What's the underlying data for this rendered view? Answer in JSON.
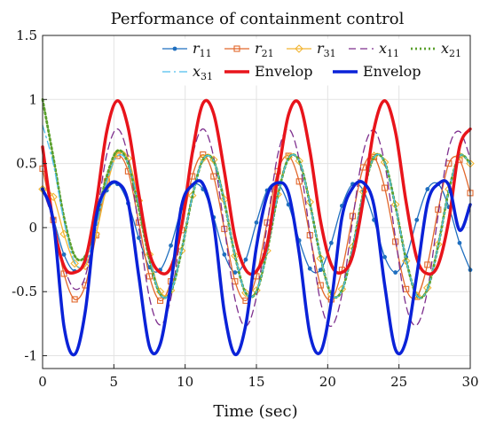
{
  "chart_data": {
    "type": "line",
    "title": "Performance of containment control",
    "xlabel": "Time (sec)",
    "ylabel": "",
    "xlim": [
      0,
      30
    ],
    "ylim": [
      -1.1,
      1.5
    ],
    "xticks": [
      0,
      5,
      10,
      15,
      20,
      25,
      30
    ],
    "xtick_labels": [
      "0",
      "5",
      "10",
      "15",
      "20",
      "25",
      "30"
    ],
    "yticks": [
      -1,
      -0.5,
      0,
      0.5,
      1,
      1.5
    ],
    "ytick_labels": [
      "-1",
      "-0.5",
      "0",
      "0.5",
      "1",
      "1.5"
    ],
    "grid": true,
    "legend_position": "top-right",
    "legend_columns": 4,
    "series": [
      {
        "name": "r11",
        "legend_base": "r",
        "legend_sub": "11",
        "color": "#1f6fbf",
        "style": "solid",
        "marker": "dot",
        "x": [
          0,
          0.75,
          1.5,
          2.25,
          3,
          3.75,
          4.5,
          5.25,
          6,
          6.75,
          7.5,
          8.25,
          9,
          9.75,
          10.5,
          11.25,
          12,
          12.75,
          13.5,
          14.25,
          15,
          15.75,
          16.5,
          17.25,
          18,
          18.75,
          19.5,
          20.25,
          21,
          21.75,
          22.5,
          23.25,
          24,
          24.75,
          25.5,
          26.25,
          27,
          27.75,
          28.5,
          29.25,
          30
        ],
        "y": [
          0.3,
          0.07,
          -0.21,
          -0.34,
          -0.25,
          0.03,
          0.29,
          0.34,
          0.19,
          -0.08,
          -0.31,
          -0.33,
          -0.14,
          0.15,
          0.33,
          0.3,
          0.08,
          -0.21,
          -0.35,
          -0.25,
          0.04,
          0.29,
          0.34,
          0.18,
          -0.1,
          -0.32,
          -0.33,
          -0.12,
          0.17,
          0.34,
          0.29,
          0.06,
          -0.23,
          -0.35,
          -0.23,
          0.06,
          0.3,
          0.34,
          0.16,
          -0.12,
          -0.33
        ]
      },
      {
        "name": "r21",
        "legend_base": "r",
        "legend_sub": "21",
        "color": "#e2672b",
        "style": "solid",
        "marker": "square",
        "x": [
          0,
          0.75,
          1.5,
          2.25,
          3,
          3.75,
          4.5,
          5.25,
          6,
          6.75,
          7.5,
          8.25,
          9,
          9.75,
          10.5,
          11.25,
          12,
          12.75,
          13.5,
          14.25,
          15,
          15.75,
          16.5,
          17.25,
          18,
          18.75,
          19.5,
          20.25,
          21,
          21.75,
          22.5,
          23.25,
          24,
          24.75,
          25.5,
          26.25,
          27,
          27.75,
          28.5,
          29.25,
          30
        ],
        "y": [
          0.46,
          0.06,
          -0.36,
          -0.56,
          -0.45,
          -0.06,
          0.36,
          0.56,
          0.44,
          0.04,
          -0.38,
          -0.57,
          -0.42,
          -0.02,
          0.4,
          0.57,
          0.4,
          -0.01,
          -0.42,
          -0.57,
          -0.38,
          0.04,
          0.44,
          0.56,
          0.36,
          -0.06,
          -0.45,
          -0.56,
          -0.33,
          0.09,
          0.47,
          0.55,
          0.31,
          -0.11,
          -0.48,
          -0.54,
          -0.29,
          0.14,
          0.5,
          0.53,
          0.27
        ]
      },
      {
        "name": "r31",
        "legend_base": "r",
        "legend_sub": "31",
        "color": "#f2b533",
        "style": "solid",
        "marker": "diamond",
        "x": [
          0,
          0.75,
          1.5,
          2.25,
          3,
          3.75,
          4.5,
          5.25,
          6,
          6.75,
          7.5,
          8.25,
          9,
          9.75,
          10.5,
          11.25,
          12,
          12.75,
          13.5,
          14.25,
          15,
          15.75,
          16.5,
          17.25,
          18,
          18.75,
          19.5,
          20.25,
          21,
          21.75,
          22.5,
          23.25,
          24,
          24.75,
          25.5,
          26.25,
          27,
          27.75,
          28.5,
          29.25,
          30
        ],
        "y": [
          0.3,
          0.24,
          -0.05,
          -0.28,
          -0.3,
          -0.05,
          0.32,
          0.58,
          0.54,
          0.21,
          -0.21,
          -0.5,
          -0.49,
          -0.18,
          0.25,
          0.54,
          0.53,
          0.22,
          -0.22,
          -0.51,
          -0.49,
          -0.18,
          0.26,
          0.55,
          0.52,
          0.2,
          -0.24,
          -0.52,
          -0.48,
          -0.15,
          0.28,
          0.56,
          0.51,
          0.18,
          -0.26,
          -0.53,
          -0.47,
          -0.13,
          0.3,
          0.56,
          0.5
        ]
      },
      {
        "name": "x11",
        "legend_base": "x",
        "legend_sub": "11",
        "color": "#7e2f8e",
        "style": "dashed",
        "marker": "none",
        "x": [
          0,
          0.75,
          1.5,
          2.25,
          3,
          3.75,
          4.5,
          5.25,
          6,
          6.75,
          7.5,
          8.25,
          9,
          9.75,
          10.5,
          11.25,
          12,
          12.75,
          13.5,
          14.25,
          15,
          15.75,
          16.5,
          17.25,
          18,
          18.75,
          19.5,
          20.25,
          21,
          21.75,
          22.5,
          23.25,
          24,
          24.75,
          25.5,
          26.25,
          27,
          27.75,
          28.5,
          29.25,
          30
        ],
        "y": [
          0.3,
          0.05,
          -0.3,
          -0.48,
          -0.38,
          0.06,
          0.57,
          0.77,
          0.55,
          0.0,
          -0.55,
          -0.76,
          -0.55,
          0.0,
          0.55,
          0.77,
          0.55,
          0.0,
          -0.56,
          -0.77,
          -0.54,
          0.02,
          0.57,
          0.77,
          0.53,
          -0.04,
          -0.58,
          -0.77,
          -0.52,
          0.06,
          0.59,
          0.76,
          0.5,
          -0.08,
          -0.61,
          -0.76,
          -0.49,
          0.1,
          0.62,
          0.75,
          0.54
        ]
      },
      {
        "name": "x21",
        "legend_base": "x",
        "legend_sub": "21",
        "color": "#5aa02c",
        "style": "dotted",
        "marker": "none",
        "x": [
          0,
          0.75,
          1.5,
          2.25,
          3,
          3.75,
          4.5,
          5.25,
          6,
          6.75,
          7.5,
          8.25,
          9,
          9.75,
          10.5,
          11.25,
          12,
          12.75,
          13.5,
          14.25,
          15,
          15.75,
          16.5,
          17.25,
          18,
          18.75,
          19.5,
          20.25,
          21,
          21.75,
          22.5,
          23.25,
          24,
          24.75,
          25.5,
          26.25,
          27,
          27.75,
          28.5,
          29.25,
          30
        ],
        "y": [
          1.0,
          0.55,
          0.08,
          -0.22,
          -0.22,
          0.05,
          0.4,
          0.6,
          0.5,
          0.15,
          -0.25,
          -0.52,
          -0.5,
          -0.18,
          0.24,
          0.53,
          0.52,
          0.2,
          -0.22,
          -0.51,
          -0.5,
          -0.18,
          0.25,
          0.54,
          0.52,
          0.19,
          -0.23,
          -0.52,
          -0.49,
          -0.16,
          0.27,
          0.55,
          0.51,
          0.17,
          -0.25,
          -0.53,
          -0.48,
          -0.14,
          0.29,
          0.56,
          0.5
        ]
      },
      {
        "name": "x31",
        "legend_base": "x",
        "legend_sub": "31",
        "color": "#4dbeee",
        "style": "dashdot",
        "marker": "none",
        "x": [
          0,
          0.75,
          1.5,
          2.25,
          3,
          3.75,
          4.5,
          5.25,
          6,
          6.75,
          7.5,
          8.25,
          9,
          9.75,
          10.5,
          11.25,
          12,
          12.75,
          13.5,
          14.25,
          15,
          15.75,
          16.5,
          17.25,
          18,
          18.75,
          19.5,
          20.25,
          21,
          21.75,
          22.5,
          23.25,
          24,
          24.75,
          25.5,
          26.25,
          27,
          27.75,
          28.5,
          29.25,
          30
        ],
        "y": [
          0.8,
          0.5,
          0.05,
          -0.27,
          -0.28,
          0.0,
          0.36,
          0.56,
          0.5,
          0.18,
          -0.23,
          -0.52,
          -0.5,
          -0.18,
          0.24,
          0.53,
          0.52,
          0.2,
          -0.22,
          -0.51,
          -0.5,
          -0.18,
          0.25,
          0.54,
          0.52,
          0.19,
          -0.23,
          -0.52,
          -0.49,
          -0.16,
          0.27,
          0.55,
          0.51,
          0.17,
          -0.25,
          -0.53,
          -0.48,
          -0.14,
          0.29,
          0.56,
          0.5
        ]
      },
      {
        "name": "Envelop",
        "legend_base": "Envelop",
        "legend_sub": "",
        "color": "#e8141b",
        "style": "solid-thick",
        "marker": "none",
        "x": [
          0,
          0.75,
          1.5,
          2.25,
          3,
          3.75,
          4.5,
          5.25,
          6,
          6.75,
          7.5,
          8.25,
          9,
          9.75,
          10.5,
          11.25,
          12,
          12.75,
          13.5,
          14.25,
          15,
          15.75,
          16.5,
          17.25,
          18,
          18.75,
          19.5,
          20.25,
          21,
          21.75,
          22.5,
          23.25,
          24,
          24.75,
          25.5,
          26.25,
          27,
          27.75,
          28.5,
          29.25,
          30
        ],
        "y": [
          0.63,
          0.04,
          -0.3,
          -0.35,
          -0.25,
          0.18,
          0.75,
          0.99,
          0.78,
          0.26,
          -0.2,
          -0.35,
          -0.31,
          0.01,
          0.58,
          0.97,
          0.89,
          0.44,
          -0.08,
          -0.33,
          -0.34,
          -0.13,
          0.4,
          0.88,
          0.97,
          0.6,
          0.05,
          -0.29,
          -0.35,
          -0.22,
          0.22,
          0.77,
          0.99,
          0.75,
          0.2,
          -0.24,
          -0.36,
          -0.29,
          0.06,
          0.63,
          0.77
        ]
      },
      {
        "name": "Envelop",
        "legend_base": "Envelop",
        "legend_sub": "",
        "color": "#0a22d8",
        "style": "solid-thick",
        "marker": "none",
        "x": [
          0,
          0.75,
          1.5,
          2.25,
          3,
          3.75,
          4.5,
          5.25,
          6,
          6.75,
          7.5,
          8.25,
          9,
          9.75,
          10.5,
          11.25,
          12,
          12.75,
          13.5,
          14.25,
          15,
          15.75,
          16.5,
          17.25,
          18,
          18.75,
          19.5,
          20.25,
          21,
          21.75,
          22.5,
          23.25,
          24,
          24.75,
          25.5,
          26.25,
          27,
          27.75,
          28.5,
          29.25,
          30
        ],
        "y": [
          0.3,
          0.05,
          -0.77,
          -0.99,
          -0.65,
          0.08,
          0.31,
          0.35,
          0.2,
          -0.38,
          -0.93,
          -0.91,
          -0.44,
          0.17,
          0.33,
          0.34,
          0.03,
          -0.66,
          -0.99,
          -0.76,
          -0.15,
          0.25,
          0.35,
          0.27,
          -0.2,
          -0.83,
          -0.97,
          -0.58,
          0.08,
          0.31,
          0.35,
          0.17,
          -0.45,
          -0.95,
          -0.88,
          -0.37,
          0.19,
          0.34,
          0.33,
          -0.02,
          0.18
        ]
      }
    ]
  }
}
